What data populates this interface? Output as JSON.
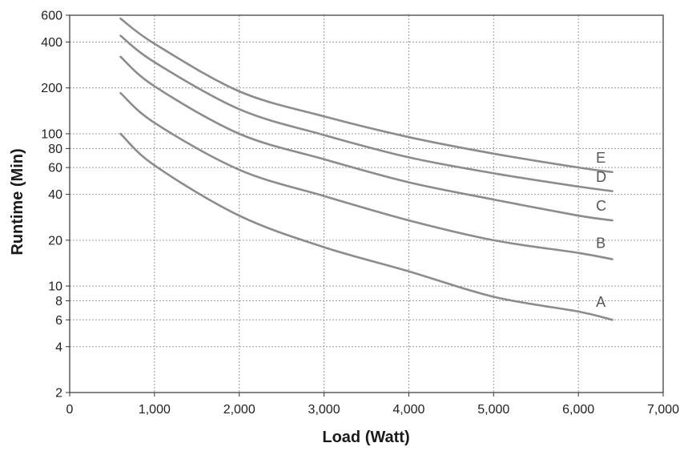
{
  "chart_data": {
    "type": "line",
    "title": "",
    "xlabel": "Load (Watt)",
    "ylabel": "Runtime (Min)",
    "xlim": [
      0,
      7000
    ],
    "ylim": [
      2,
      600
    ],
    "yscale": "log",
    "grid": true,
    "legend": "none",
    "x_ticks": [
      {
        "value": 0,
        "label": "0"
      },
      {
        "value": 1000,
        "label": "1,000"
      },
      {
        "value": 2000,
        "label": "2,000"
      },
      {
        "value": 3000,
        "label": "3,000"
      },
      {
        "value": 4000,
        "label": "4,000"
      },
      {
        "value": 5000,
        "label": "5,000"
      },
      {
        "value": 6000,
        "label": "6,000"
      },
      {
        "value": 7000,
        "label": "7,000"
      }
    ],
    "y_ticks": [
      {
        "value": 2,
        "label": "2"
      },
      {
        "value": 4,
        "label": "4"
      },
      {
        "value": 6,
        "label": "6"
      },
      {
        "value": 8,
        "label": "8"
      },
      {
        "value": 10,
        "label": "10"
      },
      {
        "value": 20,
        "label": "20"
      },
      {
        "value": 40,
        "label": "40"
      },
      {
        "value": 60,
        "label": "60"
      },
      {
        "value": 80,
        "label": "80"
      },
      {
        "value": 100,
        "label": "100"
      },
      {
        "value": 200,
        "label": "200"
      },
      {
        "value": 400,
        "label": "400"
      },
      {
        "value": 600,
        "label": "600"
      }
    ],
    "series": [
      {
        "name": "A",
        "color": "#8c8c8c",
        "x": [
          600,
          1000,
          2000,
          3000,
          4000,
          5000,
          6000,
          6400
        ],
        "y": [
          100,
          62,
          29,
          18,
          12.5,
          8.5,
          6.8,
          6
        ]
      },
      {
        "name": "B",
        "color": "#8c8c8c",
        "x": [
          600,
          1000,
          2000,
          3000,
          4000,
          5000,
          6000,
          6400
        ],
        "y": [
          185,
          118,
          58,
          39,
          27,
          20,
          16.5,
          15
        ]
      },
      {
        "name": "C",
        "color": "#8c8c8c",
        "x": [
          600,
          1000,
          2000,
          3000,
          4000,
          5000,
          6000,
          6400
        ],
        "y": [
          320,
          205,
          100,
          68,
          48,
          37,
          29,
          27
        ]
      },
      {
        "name": "D",
        "color": "#8c8c8c",
        "x": [
          600,
          1000,
          2000,
          3000,
          4000,
          5000,
          6000,
          6400
        ],
        "y": [
          440,
          295,
          145,
          98,
          70,
          55,
          45,
          42
        ]
      },
      {
        "name": "E",
        "color": "#8c8c8c",
        "x": [
          600,
          1000,
          2000,
          3000,
          4000,
          5000,
          6000,
          6400
        ],
        "y": [
          570,
          390,
          190,
          130,
          95,
          74,
          60,
          56
        ]
      }
    ]
  }
}
